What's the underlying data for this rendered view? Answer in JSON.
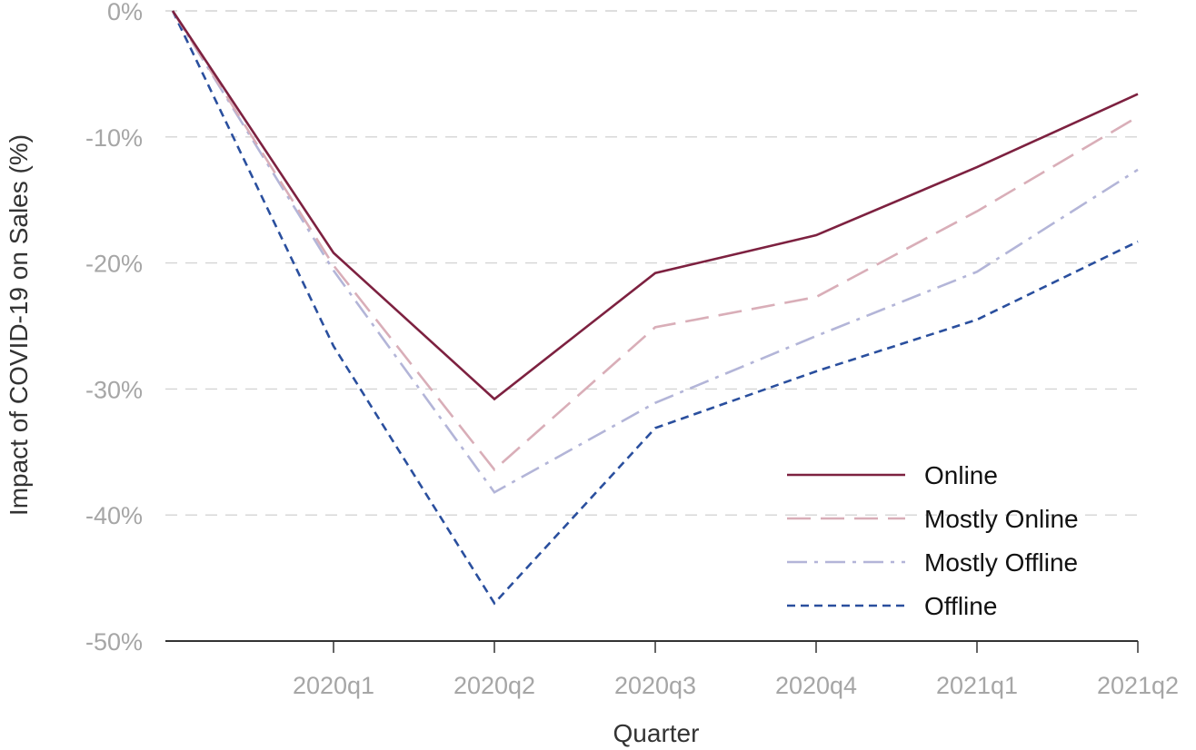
{
  "chart_data": {
    "type": "line",
    "title": "",
    "xlabel": "Quarter",
    "ylabel": "Impact of COVID-19 on Sales (%)",
    "categories": [
      "",
      "2020q1",
      "2020q2",
      "2020q3",
      "2020q4",
      "2021q1",
      "2021q2"
    ],
    "ylim": [
      -50,
      0
    ],
    "yticks": [
      0,
      -10,
      -20,
      -30,
      -40,
      -50
    ],
    "ytick_labels": [
      "0%",
      "-10%",
      "-20%",
      "-30%",
      "-40%",
      "-50%"
    ],
    "grid": "horizontal dashed",
    "legend": "bottom-right",
    "series": [
      {
        "name": "Online",
        "color": "#7d2140",
        "dash": "solid",
        "values": [
          0,
          -19.2,
          -30.8,
          -20.8,
          -17.8,
          -12.4,
          -6.6
        ]
      },
      {
        "name": "Mostly Online",
        "color": "#d9aeb8",
        "dash": "long-dash",
        "values": [
          0,
          -20.2,
          -36.4,
          -25.1,
          -22.7,
          -15.9,
          -8.4
        ]
      },
      {
        "name": "Mostly Offline",
        "color": "#b3b5d8",
        "dash": "dash-dot",
        "values": [
          0,
          -20.6,
          -38.2,
          -31.1,
          -25.8,
          -20.7,
          -12.6
        ]
      },
      {
        "name": "Offline",
        "color": "#2a4f9e",
        "dash": "short-dash",
        "values": [
          0,
          -26.6,
          -47.0,
          -33.1,
          -28.6,
          -24.5,
          -18.3
        ]
      }
    ]
  }
}
